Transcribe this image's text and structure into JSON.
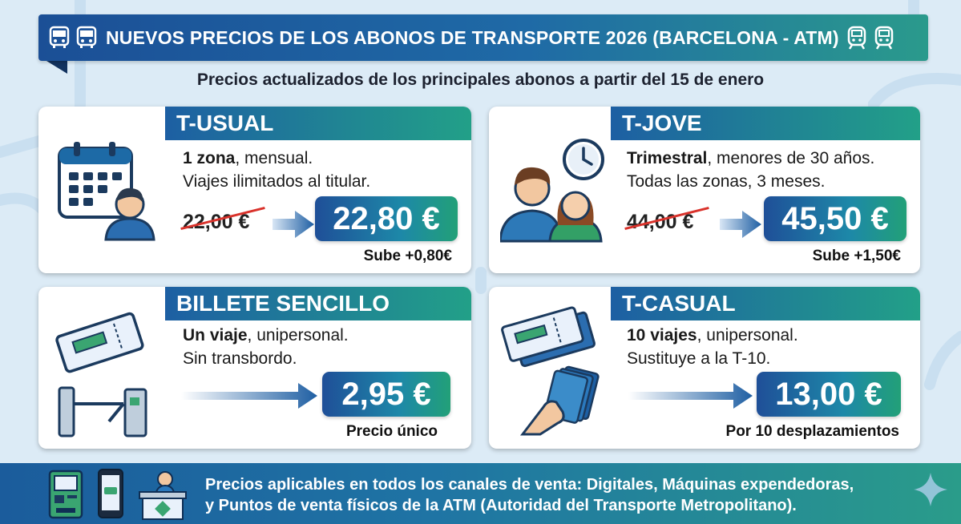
{
  "header": {
    "title": "NUEVOS PRECIOS DE LOS ABONOS DE TRANSPORTE 2026 (BARCELONA - ATM)",
    "icons": [
      "bus-icon",
      "bus-icon",
      "train-icon",
      "train-icon"
    ]
  },
  "subtitle": "Precios actualizados de los principales abonos a partir del 15 de enero",
  "cards": [
    {
      "title": "T-USUAL",
      "desc_bold": "1 zona",
      "desc_rest": ", mensual.",
      "desc_line2": "Viajes ilimitados al titular.",
      "old_price": "22,00 €",
      "new_price": "22,80 €",
      "note": "Sube +0,80€",
      "icon": "calendar-user-icon"
    },
    {
      "title": "T-JOVE",
      "desc_bold": "Trimestral",
      "desc_rest": ", menores de 30 años.",
      "desc_line2": "Todas las zonas, 3 meses.",
      "old_price": "44,00 €",
      "new_price": "45,50 €",
      "note": "Sube +1,50€",
      "icon": "young-people-clock-icon"
    },
    {
      "title": "BILLETE SENCILLO",
      "desc_bold": "Un viaje",
      "desc_rest": ", unipersonal.",
      "desc_line2": "Sin transbordo.",
      "new_price": "2,95 €",
      "note": "Precio único",
      "icon": "ticket-turnstile-icon"
    },
    {
      "title": "T-CASUAL",
      "desc_bold": "10 viajes",
      "desc_rest": ", unipersonal.",
      "desc_line2": "Sustituye a la T-10.",
      "new_price": "13,00 €",
      "note": "Por 10 desplazamientos",
      "icon": "tickets-cards-hand-icon"
    }
  ],
  "footer": {
    "line1": "Precios aplicables en todos los canales de venta: Digitales, Máquinas expendedoras,",
    "line2": "y Puntos de venta físicos de la ATM (Autoridad del Transporte Metropolitano).",
    "icons": [
      "ticket-machine-icon",
      "smartphone-ticket-icon",
      "sales-desk-icon",
      "sparkle-icon"
    ]
  },
  "colors": {
    "header_start": "#1b4f96",
    "header_end": "#2a9a8c",
    "price_start": "#1f4f98",
    "price_end": "#22a078",
    "strike": "#d9322b",
    "background": "#dcebf6"
  }
}
